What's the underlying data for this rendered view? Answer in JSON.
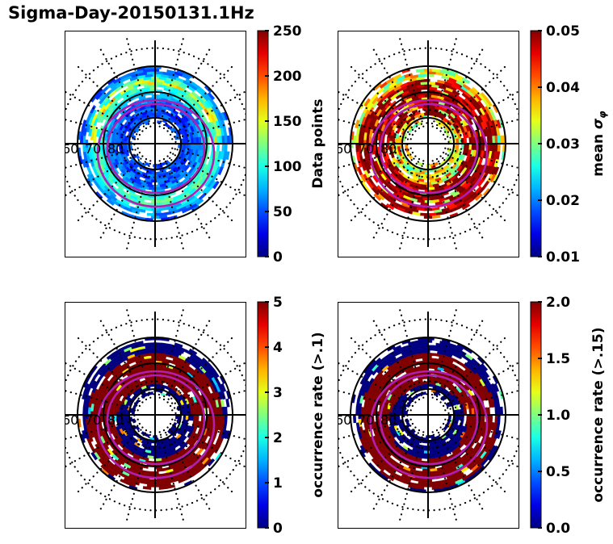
{
  "title": "Sigma-Day-20150131.1Hz",
  "chart_data": [
    {
      "type": "heatmap",
      "projection": "polar (magnetic latitude / MLT)",
      "panel": "top-left",
      "colormap": "jet",
      "colorbar": {
        "label": "Data points",
        "range": [
          0,
          250
        ],
        "ticks": [
          "0",
          "50",
          "100",
          "150",
          "200",
          "250"
        ]
      },
      "latitude_labels": [
        "60",
        "70",
        "80"
      ],
      "circles_deg": [
        60,
        70,
        80
      ],
      "oval_boundaries": 2,
      "dominant_values": "mostly 20-80 (blue/cyan); band 120-200 around 65-70 lat; max ~250 near dusk-noon"
    },
    {
      "type": "heatmap",
      "projection": "polar (magnetic latitude / MLT)",
      "panel": "top-right",
      "colormap": "jet",
      "colorbar": {
        "label": "mean σφ",
        "label_main": "mean ",
        "label_symbol": "σ",
        "label_sub": "φ",
        "range": [
          0.01,
          0.05
        ],
        "ticks": [
          "0.01",
          "0.02",
          "0.03",
          "0.04",
          "0.05"
        ]
      },
      "latitude_labels": [
        "60",
        "70",
        "80"
      ],
      "circles_deg": [
        60,
        70,
        80
      ],
      "oval_boundaries": 2,
      "dominant_values": "saturated ≥0.05 (dark red) in oval; 0.02-0.03 at equatorward edge (dawn/dusk)"
    },
    {
      "type": "heatmap",
      "projection": "polar (magnetic latitude / MLT)",
      "panel": "bottom-left",
      "colormap": "jet",
      "colorbar": {
        "label": "occurrence rate (>.1)",
        "range": [
          0,
          5
        ],
        "ticks": [
          "0",
          "1",
          "2",
          "3",
          "4",
          "5"
        ]
      },
      "latitude_labels": [
        "60",
        "70",
        "80"
      ],
      "circles_deg": [
        60,
        70,
        80
      ],
      "oval_boundaries": 2,
      "dominant_values": "0 (dark blue) outside oval; ≥5 (dark red) within oval; scattered 2-4"
    },
    {
      "type": "heatmap",
      "projection": "polar (magnetic latitude / MLT)",
      "panel": "bottom-right",
      "colormap": "jet",
      "colorbar": {
        "label": "occurrence rate (>.15)",
        "range": [
          0.0,
          2.0
        ],
        "ticks": [
          "0.0",
          "0.5",
          "1.0",
          "1.5",
          "2.0"
        ]
      },
      "latitude_labels": [
        "60",
        "70",
        "80"
      ],
      "circles_deg": [
        60,
        70,
        80
      ],
      "oval_boundaries": 2,
      "dominant_values": "0.0 (dark blue) outside oval; ≥2.0 (dark red) within oval; scattered 0.5-1.5"
    }
  ]
}
